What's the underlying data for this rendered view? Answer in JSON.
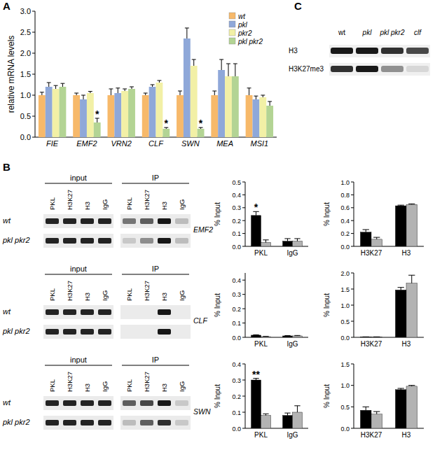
{
  "panel_labels": [
    "A",
    "B",
    "C"
  ],
  "chart_data": [
    {
      "type": "bar",
      "y_label": "relative mRNA levels",
      "categories": [
        "FIE",
        "EMF2",
        "VRN2",
        "CLF",
        "SWN",
        "MEA",
        "MSI1"
      ],
      "series": [
        {
          "name": "wt",
          "color": "#f7b96a",
          "values": [
            1.0,
            1.0,
            1.0,
            1.0,
            1.0,
            1.0,
            1.0
          ],
          "errors": [
            0.07,
            0.05,
            0.15,
            0.05,
            0.1,
            0.1,
            0.17
          ]
        },
        {
          "name": "pkl",
          "color": "#8fa8d9",
          "values": [
            1.2,
            0.9,
            1.05,
            1.2,
            2.35,
            1.6,
            0.9
          ],
          "errors": [
            0.1,
            0.1,
            0.12,
            0.05,
            0.25,
            0.25,
            0.08
          ]
        },
        {
          "name": "pkr2",
          "color": "#f2f0a6",
          "values": [
            1.15,
            1.05,
            1.1,
            1.3,
            1.7,
            1.45,
            0.95
          ],
          "errors": [
            0.08,
            0.04,
            0.05,
            0.05,
            0.15,
            0.3,
            0.05
          ]
        },
        {
          "name": "pkl pkr2",
          "color": "#b3d494",
          "values": [
            1.2,
            0.35,
            1.15,
            0.2,
            0.2,
            1.45,
            0.75
          ],
          "errors": [
            0.08,
            0.1,
            0.05,
            0.03,
            0.03,
            0.3,
            0.1
          ]
        }
      ],
      "ylim": [
        0,
        3
      ],
      "yticks": [
        {
          "value": 0,
          "label": "0.0"
        },
        0.5,
        {
          "value": 1,
          "label": "1.0"
        },
        1.5,
        {
          "value": 2,
          "label": "2.0"
        },
        2.5,
        {
          "value": 3,
          "label": "3.0"
        }
      ],
      "legend": "upper right",
      "annotations": [
        {
          "text": "*",
          "category": 1,
          "series": 3
        },
        {
          "text": "*",
          "category": 3,
          "series": 3
        },
        {
          "text": "*",
          "category": 4,
          "series": 3
        }
      ]
    },
    {
      "type": "bar",
      "y_label": "% Input",
      "categories": [
        "PKL",
        "IgG"
      ],
      "series": [
        {
          "color": "#000000",
          "values": [
            0.24,
            0.04
          ],
          "errors": [
            0.03,
            0.02
          ]
        },
        {
          "color": "#b3b3b3",
          "values": [
            0.03,
            0.04
          ],
          "errors": [
            0.02,
            0.02
          ]
        }
      ],
      "ylim": [
        0,
        0.5
      ],
      "yticks": [
        {
          "value": 0,
          "label": "0.0"
        },
        0.1,
        0.2,
        0.3,
        0.4,
        0.5
      ],
      "annotations": [
        {
          "text": "*",
          "category": 0,
          "series": 0
        }
      ]
    },
    {
      "type": "bar",
      "y_label": "% Input",
      "categories": [
        "H3K27",
        "H3"
      ],
      "series": [
        {
          "color": "#000000",
          "values": [
            0.22,
            0.63
          ],
          "errors": [
            0.04,
            0.01
          ]
        },
        {
          "color": "#b3b3b3",
          "values": [
            0.11,
            0.65
          ],
          "errors": [
            0.03,
            0.01
          ]
        }
      ],
      "ylim": [
        0,
        1
      ],
      "yticks": [
        {
          "value": 0,
          "label": "0.0"
        },
        0.2,
        0.4,
        0.6,
        0.8,
        {
          "value": 1,
          "label": "1.0"
        }
      ]
    },
    {
      "type": "bar",
      "y_label": "% Input",
      "categories": [
        "PKL",
        "IgG"
      ],
      "series": [
        {
          "color": "#000000",
          "values": [
            0.015,
            0.01
          ],
          "errors": [
            0.003,
            0.002
          ]
        },
        {
          "color": "#b3b3b3",
          "values": [
            0.005,
            0.01
          ],
          "errors": [
            0.002,
            0.003
          ]
        }
      ],
      "ylim": [
        0,
        0.45
      ],
      "yticks": [
        {
          "value": 0,
          "label": "0.0"
        },
        0.1,
        0.2,
        0.3,
        0.4
      ]
    },
    {
      "type": "bar",
      "y_label": "% Input",
      "categories": [
        "H3K27",
        "H3"
      ],
      "series": [
        {
          "color": "#000000",
          "values": [
            0.01,
            1.47
          ],
          "errors": [
            0.005,
            0.08
          ]
        },
        {
          "color": "#b3b3b3",
          "values": [
            0.01,
            1.68
          ],
          "errors": [
            0.005,
            0.25
          ]
        }
      ],
      "ylim": [
        0,
        2
      ],
      "yticks": [
        {
          "value": 0,
          "label": "0.0"
        },
        0.5,
        {
          "value": 1,
          "label": "1.0"
        },
        1.5,
        {
          "value": 2,
          "label": "2.0"
        }
      ]
    },
    {
      "type": "bar",
      "y_label": "% Input",
      "categories": [
        "PKL",
        "IgG"
      ],
      "series": [
        {
          "color": "#000000",
          "values": [
            0.3,
            0.08
          ],
          "errors": [
            0.01,
            0.015
          ]
        },
        {
          "color": "#b3b3b3",
          "values": [
            0.08,
            0.1
          ],
          "errors": [
            0.01,
            0.04
          ]
        }
      ],
      "ylim": [
        0,
        0.4
      ],
      "yticks": [
        {
          "value": 0,
          "label": "0.0"
        },
        0.1,
        0.2,
        0.3,
        0.4
      ],
      "annotations": [
        {
          "text": "**",
          "category": 0,
          "series": 0
        }
      ]
    },
    {
      "type": "bar",
      "y_label": "% Input",
      "categories": [
        "H3K27",
        "H3"
      ],
      "series": [
        {
          "color": "#000000",
          "values": [
            0.42,
            0.9
          ],
          "errors": [
            0.08,
            0.03
          ]
        },
        {
          "color": "#b3b3b3",
          "values": [
            0.33,
            0.98
          ],
          "errors": [
            0.06,
            0.02
          ]
        }
      ],
      "ylim": [
        0,
        1.5
      ],
      "yticks": [
        {
          "value": 0,
          "label": "0.0"
        },
        0.5,
        {
          "value": 1,
          "label": "1.0"
        },
        1.5
      ]
    }
  ],
  "gels": [
    {
      "gene": "EMF2",
      "input_label": "input",
      "ip_label": "IP",
      "lanes": [
        "PKL",
        "H3K27",
        "H3",
        "IgG"
      ],
      "rows": [
        {
          "label": "wt",
          "input": [
            0.85,
            0.85,
            0.85,
            0.85
          ],
          "ip": [
            0.5,
            0.6,
            0.9,
            0.2
          ]
        },
        {
          "label": "pkl pkr2",
          "input": [
            0.85,
            0.85,
            0.85,
            0.85
          ],
          "ip": [
            0.15,
            0.4,
            0.9,
            0.2
          ]
        }
      ]
    },
    {
      "gene": "CLF",
      "input_label": "input",
      "ip_label": "IP",
      "lanes": [
        "PKL",
        "H3K27",
        "H3",
        "IgG"
      ],
      "rows": [
        {
          "label": "wt",
          "input": [
            0.85,
            0.85,
            0.85,
            0.85
          ],
          "ip": [
            0,
            0,
            0.9,
            0
          ]
        },
        {
          "label": "pkl pkr2",
          "input": [
            0.85,
            0.85,
            0.85,
            0.85
          ],
          "ip": [
            0,
            0,
            0.9,
            0
          ]
        }
      ]
    },
    {
      "gene": "SWN",
      "input_label": "input",
      "ip_label": "IP",
      "lanes": [
        "PKL",
        "H3K27",
        "H3",
        "IgG"
      ],
      "rows": [
        {
          "label": "wt",
          "input": [
            0.85,
            0.85,
            0.85,
            0.85
          ],
          "ip": [
            0.6,
            0.7,
            0.9,
            0.15
          ]
        },
        {
          "label": "pkl pkr2",
          "input": [
            0.85,
            0.85,
            0.85,
            0.85
          ],
          "ip": [
            0.2,
            0.6,
            0.8,
            0.15
          ]
        }
      ]
    }
  ],
  "western": {
    "lanes": [
      "wt",
      "pkl",
      "pkl pkr2",
      "clf"
    ],
    "rows": [
      {
        "label": "H3",
        "bands": [
          0.9,
          0.9,
          0.8,
          0.7
        ]
      },
      {
        "label": "H3K27me3",
        "bands": [
          0.8,
          0.9,
          0.4,
          0.1
        ]
      }
    ]
  }
}
